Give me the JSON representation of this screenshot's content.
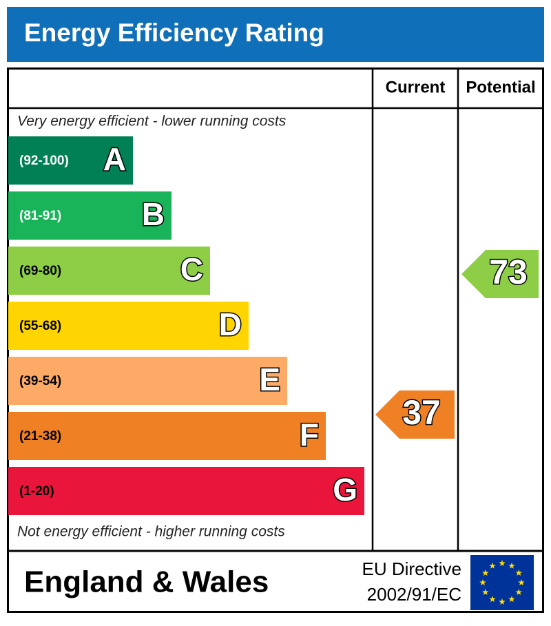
{
  "header": {
    "title": "Energy Efficiency Rating"
  },
  "columns": {
    "current": "Current",
    "potential": "Potential"
  },
  "top_note": "Very energy efficient - lower running costs",
  "bottom_note": "Not energy efficient - higher running costs",
  "bands": [
    {
      "range": "(92-100)",
      "letter": "A",
      "color": "#008054"
    },
    {
      "range": "(81-91)",
      "letter": "B",
      "color": "#19b459"
    },
    {
      "range": "(69-80)",
      "letter": "C",
      "color": "#8dce46"
    },
    {
      "range": "(55-68)",
      "letter": "D",
      "color": "#ffd500"
    },
    {
      "range": "(39-54)",
      "letter": "E",
      "color": "#fcaa65"
    },
    {
      "range": "(21-38)",
      "letter": "F",
      "color": "#ef8023"
    },
    {
      "range": "(1-20)",
      "letter": "G",
      "color": "#e9153b"
    }
  ],
  "current": {
    "value": 37,
    "color": "#ef8023"
  },
  "potential": {
    "value": 73,
    "color": "#8dce46"
  },
  "footer": {
    "region": "England & Wales",
    "directive_line1": "EU Directive",
    "directive_line2": "2002/91/EC"
  }
}
